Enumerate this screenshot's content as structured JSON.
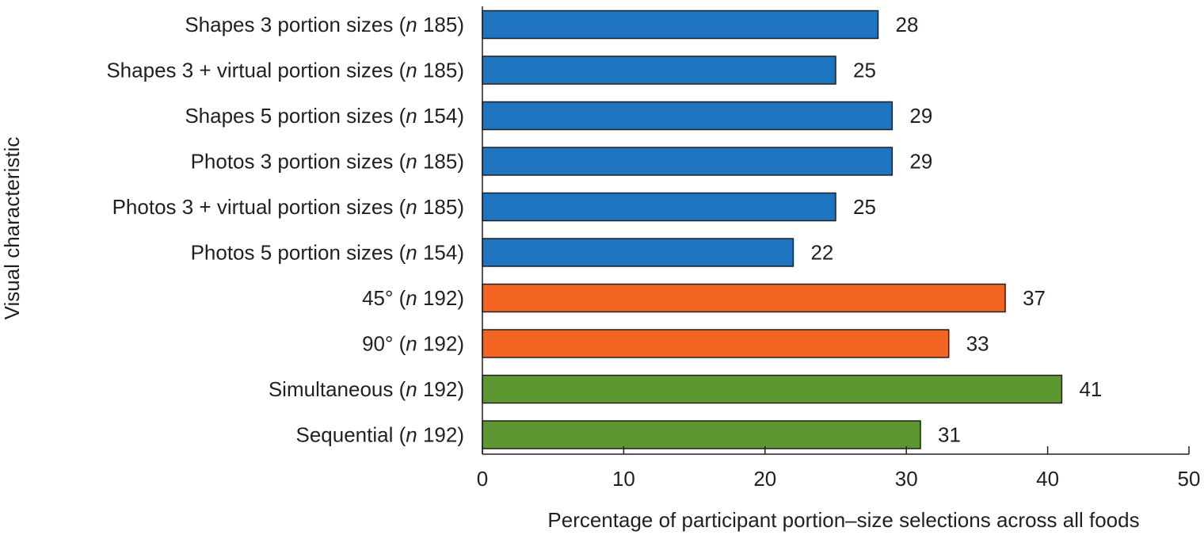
{
  "chart_data": {
    "type": "bar",
    "orientation": "horizontal",
    "title": "",
    "xlabel": "Percentage of participant portion–size selections across all foods",
    "ylabel": "Visual characteristic",
    "xlim": [
      0,
      50
    ],
    "xticks": [
      0,
      10,
      20,
      30,
      40,
      50
    ],
    "grid": false,
    "legend": "none",
    "categories": [
      {
        "label": "Shapes 3 portion sizes (",
        "n": "n",
        "count": " 185)"
      },
      {
        "label": "Shapes 3 + virtual portion sizes (",
        "n": "n",
        "count": " 185)"
      },
      {
        "label": "Shapes 5 portion sizes (",
        "n": "n",
        "count": " 154)"
      },
      {
        "label": "Photos 3 portion sizes (",
        "n": "n",
        "count": " 185)"
      },
      {
        "label": "Photos 3 + virtual portion sizes (",
        "n": "n",
        "count": " 185)"
      },
      {
        "label": "Photos 5 portion sizes (",
        "n": "n",
        "count": " 154)"
      },
      {
        "label": "45° (",
        "n": "n",
        "count": " 192)"
      },
      {
        "label": "90° (",
        "n": "n",
        "count": " 192)"
      },
      {
        "label": "Simultaneous (",
        "n": "n",
        "count": " 192)"
      },
      {
        "label": "Sequential (",
        "n": "n",
        "count": " 192)"
      }
    ],
    "values": [
      28,
      25,
      29,
      29,
      25,
      22,
      37,
      33,
      41,
      31
    ],
    "bar_colors": [
      "#1f74bf",
      "#1f74bf",
      "#1f74bf",
      "#1f74bf",
      "#1f74bf",
      "#1f74bf",
      "#f26522",
      "#f26522",
      "#5c9732",
      "#5c9732"
    ]
  }
}
